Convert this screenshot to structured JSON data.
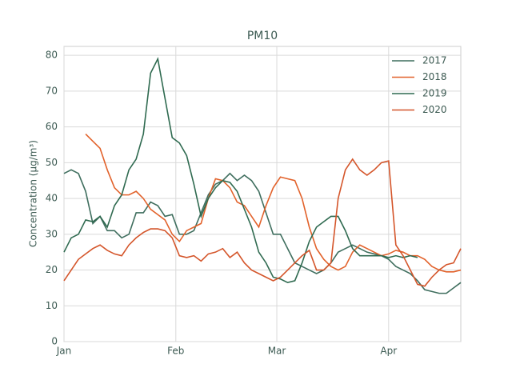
{
  "chart_data": {
    "type": "line",
    "title": "PM10",
    "ylabel": "Concentration (μg/m³)",
    "x": [
      0,
      2,
      4,
      6,
      8,
      10,
      12,
      14,
      16,
      18,
      20,
      22,
      24,
      26,
      28,
      30,
      32,
      34,
      36,
      38,
      40,
      42,
      44,
      46,
      48,
      50,
      52,
      54,
      56,
      58,
      60,
      62,
      64,
      66,
      68,
      70,
      72,
      74,
      76,
      78,
      80,
      82,
      84,
      86,
      88,
      90,
      92,
      94,
      96,
      98,
      100,
      102,
      104,
      106,
      108,
      110
    ],
    "xlim": [
      0,
      110
    ],
    "xticks": [
      {
        "value": 0,
        "label": "Jan"
      },
      {
        "value": 31,
        "label": "Feb"
      },
      {
        "value": 59,
        "label": "Mar"
      },
      {
        "value": 90,
        "label": "Apr"
      }
    ],
    "ylim": [
      0,
      82.5
    ],
    "yticks": [
      0,
      10,
      20,
      30,
      40,
      50,
      60,
      70,
      80
    ],
    "grid": true,
    "legend": "upper right",
    "series": [
      {
        "name": "2017",
        "color": "#3f6e5e",
        "values": [
          47,
          48,
          47,
          42,
          33,
          35,
          31,
          31,
          29,
          30,
          36,
          36,
          39,
          38,
          35,
          35.5,
          30,
          30,
          31,
          36,
          41,
          44,
          45,
          47,
          45,
          46.5,
          45,
          42,
          36,
          30,
          30,
          26,
          22,
          21,
          20,
          19,
          20,
          22,
          25,
          26,
          27,
          26,
          25,
          24.5,
          24,
          23,
          21,
          20,
          19,
          17,
          14.5,
          14,
          13.5,
          13.5,
          15,
          16.5
        ]
      },
      {
        "name": "2018",
        "color": "#e2622b",
        "values": [
          null,
          null,
          null,
          58,
          56,
          54,
          48,
          43,
          41,
          41,
          42,
          40,
          37,
          35.5,
          34,
          30,
          28,
          31,
          32,
          33,
          40,
          45.5,
          45,
          43,
          39,
          38,
          35,
          32,
          38,
          43,
          46,
          45.5,
          45,
          40,
          32,
          26,
          23,
          21,
          20,
          21,
          25,
          27,
          26,
          25,
          24,
          24.5,
          25.5,
          25,
          24,
          24,
          23,
          21,
          20,
          19.5,
          19.5,
          20
        ]
      },
      {
        "name": "2019",
        "color": "#2f6a50",
        "values": [
          25,
          29,
          30,
          34,
          33.5,
          35,
          32,
          38,
          41,
          48,
          51,
          58,
          75,
          79,
          68,
          57,
          55.5,
          52,
          44,
          35,
          40,
          43,
          45,
          44.5,
          42,
          37,
          32,
          25,
          22,
          18,
          17.5,
          16.5,
          17,
          22,
          28,
          32,
          33.5,
          35,
          35,
          31,
          26,
          24,
          24,
          24,
          24,
          23.5,
          24,
          23.5,
          24,
          23.5,
          null,
          null,
          null,
          null,
          null,
          null
        ]
      },
      {
        "name": "2020",
        "color": "#d4552a",
        "values": [
          17,
          20,
          23,
          24.5,
          26,
          27,
          25.5,
          24.5,
          24,
          27,
          29,
          30.5,
          31.5,
          31.5,
          31,
          29,
          24,
          23.5,
          24,
          22.5,
          24.5,
          25,
          26,
          23.5,
          25,
          22,
          20,
          19,
          18,
          17,
          18,
          20,
          22,
          24,
          25.5,
          20,
          20,
          22,
          40,
          48,
          51,
          48,
          46.5,
          48,
          50,
          50.5,
          27,
          24,
          20,
          16,
          15.5,
          18,
          20,
          21.5,
          22,
          26
        ]
      }
    ]
  }
}
